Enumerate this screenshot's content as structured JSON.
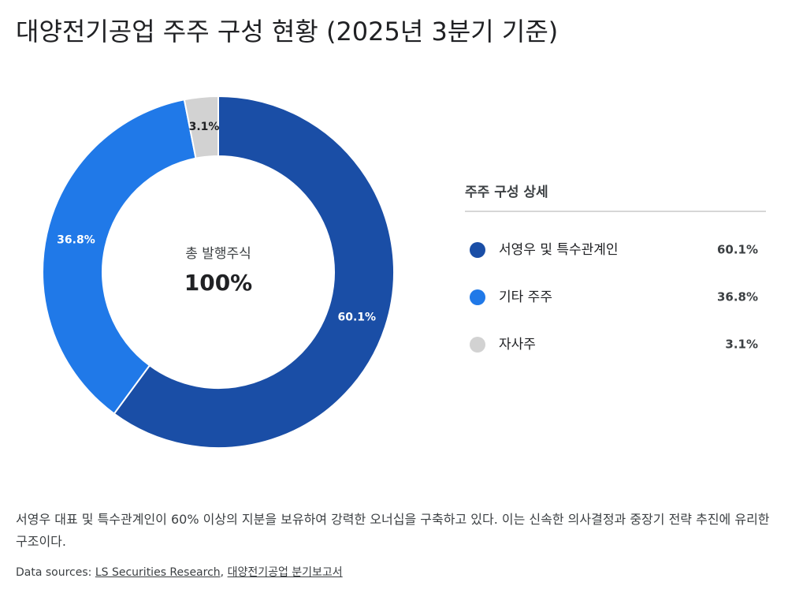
{
  "chart_data": {
    "type": "donut",
    "title": "대양전기공업 주주 구성 현황 (2025년 3분기 기준)",
    "center_label": "총 발행주식",
    "center_value": "100%",
    "categories": [
      "서영우 및 특수관계인",
      "기타 주주",
      "자사주"
    ],
    "values": [
      60.1,
      36.8,
      3.1
    ],
    "value_labels": [
      "60.1%",
      "36.8%",
      "3.1%"
    ],
    "colors": [
      "#1a4ea6",
      "#2079e8",
      "#d2d2d2"
    ],
    "legend_title": "주주 구성 상세"
  },
  "note": "서영우 대표 및 특수관계인이 60% 이상의 지분을 보유하여 강력한 오너십을 구축하고 있다. 이는 신속한 의사결정과 중장기 전략 추진에 유리한 구조이다.",
  "sources": {
    "label": "Data sources:",
    "links": [
      "LS Securities Research",
      "대양전기공업 분기보고서"
    ],
    "separator": ","
  }
}
